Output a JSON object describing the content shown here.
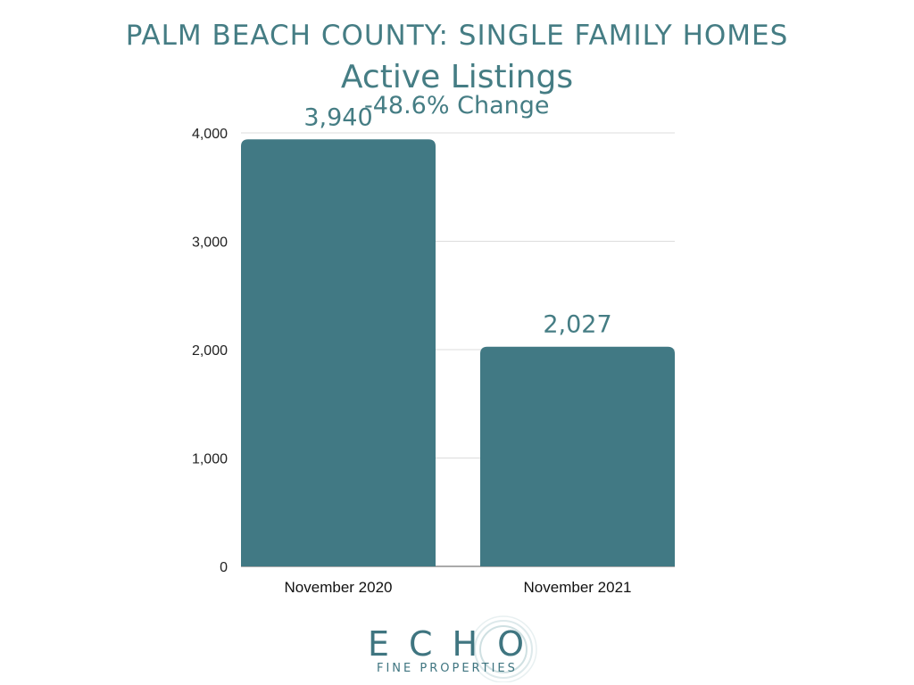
{
  "header": {
    "title": "PALM BEACH COUNTY: SINGLE FAMILY HOMES",
    "subtitle": "Active Listings"
  },
  "annotation": "-48.6% Change",
  "brand": {
    "name": "ECHO",
    "tagline": "FINE PROPERTIES",
    "color": "#3f7580"
  },
  "chart_data": {
    "type": "bar",
    "title": "Active Listings",
    "categories": [
      "November 2020",
      "November 2021"
    ],
    "values": [
      3940,
      2027
    ],
    "value_labels": [
      "3,940",
      "2,027"
    ],
    "xlabel": "",
    "ylabel": "",
    "ylim": [
      0,
      4000
    ],
    "yticks": [
      0,
      1000,
      2000,
      3000,
      4000
    ],
    "ytick_labels": [
      "0",
      "1,000",
      "2,000",
      "3,000",
      "4,000"
    ],
    "grid": true,
    "legend": "none",
    "bar_color": "#417984",
    "label_color": "#457d84"
  }
}
